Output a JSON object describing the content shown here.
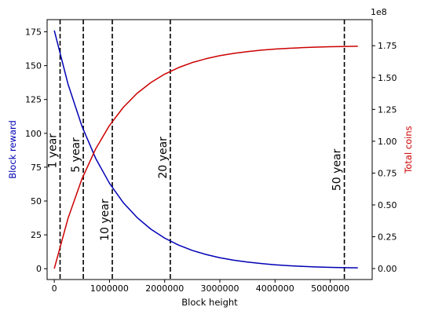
{
  "chart_data": {
    "type": "line",
    "xlabel": "Block height",
    "ylabel_left": "Block reward",
    "ylabel_right": "Total coins",
    "right_axis_multiplier": "1e8",
    "colors": {
      "reward": "#0000b4",
      "coins": "#cc0000",
      "vlines": "#000000"
    },
    "x_range": [
      -130000,
      5760000
    ],
    "ylim_left": [
      -8,
      184
    ],
    "ylim_right": [
      -8600000.0,
      195500000.0
    ],
    "x_ticks": [
      {
        "value": 0,
        "label": "0"
      },
      {
        "value": 1000000,
        "label": "1000000"
      },
      {
        "value": 2000000,
        "label": "2000000"
      },
      {
        "value": 3000000,
        "label": "3000000"
      },
      {
        "value": 4000000,
        "label": "4000000"
      },
      {
        "value": 5000000,
        "label": "5000000"
      }
    ],
    "y_left_ticks": [
      {
        "value": 0,
        "label": "0"
      },
      {
        "value": 25,
        "label": "25"
      },
      {
        "value": 50,
        "label": "50"
      },
      {
        "value": 75,
        "label": "75"
      },
      {
        "value": 100,
        "label": "100"
      },
      {
        "value": 125,
        "label": "125"
      },
      {
        "value": 150,
        "label": "150"
      },
      {
        "value": 175,
        "label": "175"
      }
    ],
    "y_right_ticks": [
      {
        "value": 0,
        "label": "0.00"
      },
      {
        "value": 25000000,
        "label": "0.25"
      },
      {
        "value": 50000000,
        "label": "0.50"
      },
      {
        "value": 75000000,
        "label": "0.75"
      },
      {
        "value": 100000000,
        "label": "1.00"
      },
      {
        "value": 125000000,
        "label": "1.25"
      },
      {
        "value": 150000000,
        "label": "1.50"
      },
      {
        "value": 175000000,
        "label": "1.75"
      }
    ],
    "series": [
      {
        "key": "reward",
        "axis": "left",
        "x": [
          0,
          250000,
          500000,
          750000,
          1000000,
          1250000,
          1500000,
          1750000,
          2000000,
          2250000,
          2500000,
          2750000,
          3000000,
          3250000,
          3500000,
          3750000,
          4000000,
          4250000,
          4500000,
          4750000,
          5000000,
          5250000,
          5500000
        ],
        "values": [
          176,
          136.2,
          105.4,
          81.5,
          63.1,
          48.8,
          37.8,
          29.2,
          22.6,
          17.5,
          13.5,
          10.5,
          8.1,
          6.3,
          4.9,
          3.8,
          2.9,
          2.2,
          1.7,
          1.3,
          1.0,
          0.8,
          0.6
        ]
      },
      {
        "key": "coins",
        "axis": "right",
        "x": [
          0,
          250000,
          500000,
          750000,
          1000000,
          1250000,
          1500000,
          1750000,
          2000000,
          2250000,
          2500000,
          2750000,
          3000000,
          3250000,
          3500000,
          3750000,
          4000000,
          4250000,
          4500000,
          4750000,
          5000000,
          5250000,
          5500000
        ],
        "values": [
          0,
          39600000,
          70300000,
          94000000,
          112400000,
          126600000,
          137600000,
          146100000,
          152700000,
          157800000,
          161800000,
          164800000,
          167200000,
          169000000,
          170400000,
          171500000,
          172400000,
          173000000,
          173500000,
          173900000,
          174200000,
          174400000,
          174600000
        ]
      }
    ],
    "vlines": [
      {
        "x": 105120,
        "label": "1 year",
        "label_y": 87
      },
      {
        "x": 525600,
        "label": "5 year",
        "label_y": 84
      },
      {
        "x": 1051200,
        "label": "10 year",
        "label_y": 36
      },
      {
        "x": 2102400,
        "label": "20 year",
        "label_y": 82
      },
      {
        "x": 5256000,
        "label": "50 year",
        "label_y": 73
      }
    ]
  }
}
